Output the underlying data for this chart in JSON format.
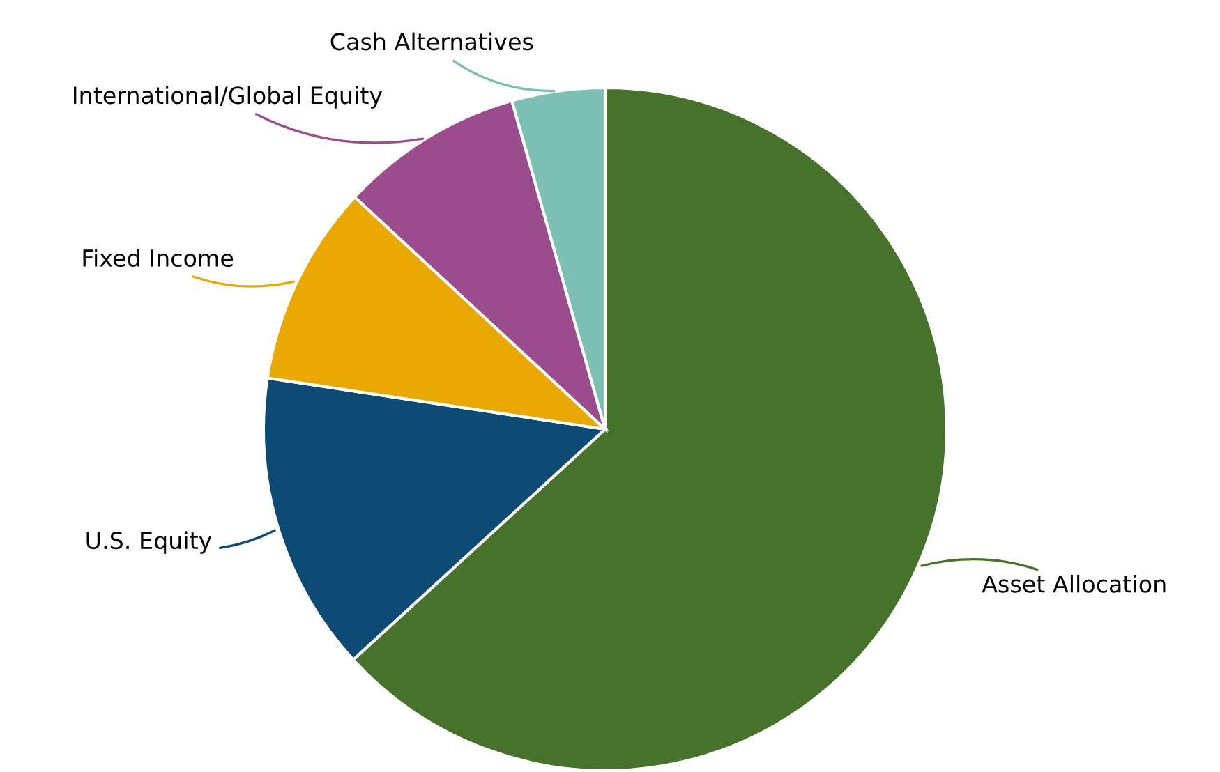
{
  "chart_data": {
    "type": "pie",
    "categories": [
      "Asset Allocation",
      "U.S. Equity",
      "Fixed Income",
      "International/Global Equity",
      "Cash Alternatives"
    ],
    "values": [
      63.2,
      14.2,
      9.5,
      8.7,
      4.4
    ],
    "colors": [
      "#46722c",
      "#0a4a73",
      "#e8a800",
      "#9b4c8c",
      "#7bbfb5"
    ],
    "legend": false
  }
}
